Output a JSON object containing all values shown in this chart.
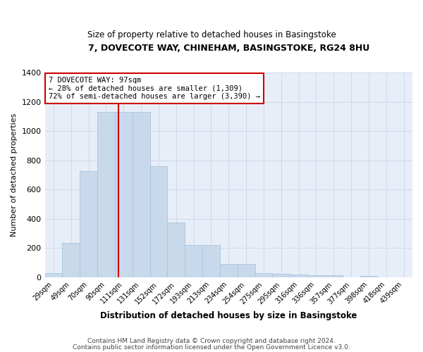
{
  "title1": "7, DOVECOTE WAY, CHINEHAM, BASINGSTOKE, RG24 8HU",
  "title2": "Size of property relative to detached houses in Basingstoke",
  "xlabel": "Distribution of detached houses by size in Basingstoke",
  "ylabel": "Number of detached properties",
  "footer1": "Contains HM Land Registry data © Crown copyright and database right 2024.",
  "footer2": "Contains public sector information licensed under the Open Government Licence v3.0.",
  "annotation_line1": "7 DOVECOTE WAY: 97sqm",
  "annotation_line2": "← 28% of detached houses are smaller (1,309)",
  "annotation_line3": "72% of semi-detached houses are larger (3,390) →",
  "bar_labels": [
    "29sqm",
    "49sqm",
    "70sqm",
    "90sqm",
    "111sqm",
    "131sqm",
    "152sqm",
    "172sqm",
    "193sqm",
    "213sqm",
    "234sqm",
    "254sqm",
    "275sqm",
    "295sqm",
    "316sqm",
    "336sqm",
    "357sqm",
    "377sqm",
    "398sqm",
    "418sqm",
    "439sqm"
  ],
  "bar_values": [
    30,
    235,
    725,
    1130,
    1130,
    1130,
    760,
    375,
    220,
    220,
    90,
    90,
    30,
    25,
    20,
    15,
    12,
    0,
    10,
    0,
    0
  ],
  "bar_color": "#c9d9ec",
  "bar_edge_color": "#a8c4dc",
  "red_line_x": 3.72,
  "vline_color": "#cc0000",
  "grid_color": "#d0d8e8",
  "bg_color": "#e8eef8",
  "ylim": [
    0,
    1400
  ],
  "yticks": [
    0,
    200,
    400,
    600,
    800,
    1000,
    1200,
    1400
  ],
  "annotation_box_color": "#ffffff",
  "annotation_box_edge": "#cc0000",
  "fig_width": 6.0,
  "fig_height": 5.0,
  "dpi": 100
}
